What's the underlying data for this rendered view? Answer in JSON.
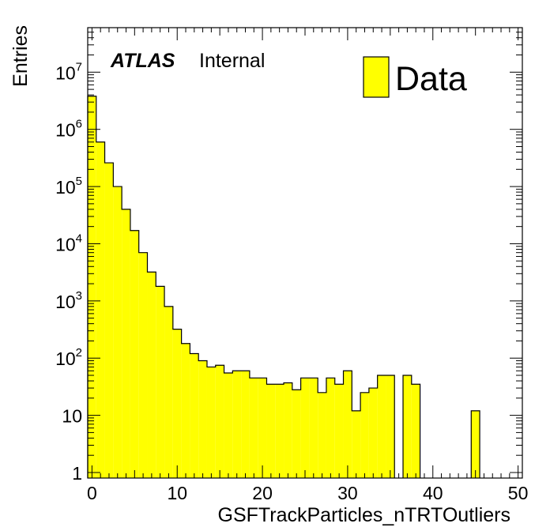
{
  "chart_data": {
    "type": "bar",
    "title": "",
    "xlabel": "GSFTrackParticles_nTRTOutliers",
    "ylabel": "Entries",
    "xlim": [
      -0.5,
      50.5
    ],
    "ylim": [
      0.8,
      60000000
    ],
    "log_y": true,
    "grid": false,
    "legend_position": "top-right",
    "x_ticks": [
      "0",
      "10",
      "20",
      "30",
      "40",
      "50"
    ],
    "y_ticks": [
      {
        "base": "1",
        "exp": ""
      },
      {
        "base": "10",
        "exp": ""
      },
      {
        "base": "10",
        "exp": "2"
      },
      {
        "base": "10",
        "exp": "3"
      },
      {
        "base": "10",
        "exp": "4"
      },
      {
        "base": "10",
        "exp": "5"
      },
      {
        "base": "10",
        "exp": "6"
      },
      {
        "base": "10",
        "exp": "7"
      }
    ],
    "bin_width": 1,
    "bin_start": -0.5,
    "fill_color": "#ffff00",
    "line_color": "#000000",
    "series": [
      {
        "name": "Data",
        "values": [
          3800000,
          600000,
          260000,
          100000,
          40000,
          17000,
          7000,
          3200,
          1800,
          800,
          320,
          180,
          120,
          90,
          70,
          75,
          55,
          60,
          60,
          45,
          45,
          35,
          35,
          37,
          28,
          45,
          45,
          25,
          45,
          35,
          60,
          12,
          25,
          30,
          50,
          50,
          0,
          50,
          35,
          0,
          0,
          0,
          0,
          0,
          0,
          12,
          0,
          0,
          0,
          0,
          0
        ]
      }
    ],
    "annotations": {
      "experiment": "ATLAS",
      "status": "Internal"
    }
  }
}
